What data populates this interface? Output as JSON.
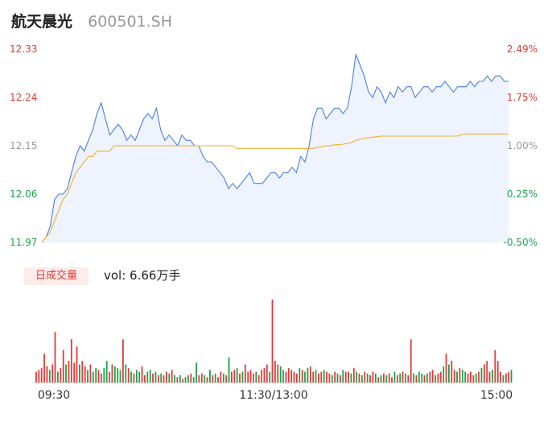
{
  "header": {
    "name": "航天晨光",
    "code": "600501.SH"
  },
  "volume_panel": {
    "badge": "日成交量",
    "vol_text": "vol: 6.66万手"
  },
  "colors": {
    "up": "#e53935",
    "down": "#1aa34a",
    "neutral": "#999999",
    "price_line": "#4a7fe3",
    "avg_line": "#f2b02c",
    "area_fill": "#eef3fd"
  },
  "chart_data": [
    {
      "type": "line",
      "x_ticks": [
        "09:30",
        "11:30/13:00",
        "15:00"
      ],
      "left_axis": [
        "12.33",
        "12.24",
        "12.15",
        "12.06",
        "11.97"
      ],
      "right_axis": [
        "2.49%",
        "1.75%",
        "1.00%",
        "0.25%",
        "-0.50%"
      ],
      "ylim": [
        11.97,
        12.33
      ],
      "series": [
        {
          "name": "price",
          "values": [
            11.97,
            11.98,
            12.0,
            12.05,
            12.06,
            12.06,
            12.07,
            12.1,
            12.13,
            12.15,
            12.14,
            12.16,
            12.18,
            12.21,
            12.23,
            12.2,
            12.17,
            12.18,
            12.19,
            12.18,
            12.16,
            12.17,
            12.16,
            12.18,
            12.2,
            12.21,
            12.2,
            12.22,
            12.18,
            12.16,
            12.17,
            12.16,
            12.15,
            12.17,
            12.16,
            12.16,
            12.15,
            12.15,
            12.13,
            12.12,
            12.12,
            12.11,
            12.1,
            12.09,
            12.07,
            12.08,
            12.07,
            12.08,
            12.09,
            12.1,
            12.08,
            12.08,
            12.08,
            12.09,
            12.1,
            12.1,
            12.09,
            12.1,
            12.1,
            12.11,
            12.1,
            12.13,
            12.12,
            12.15,
            12.2,
            12.22,
            12.22,
            12.2,
            12.21,
            12.22,
            12.22,
            12.21,
            12.22,
            12.26,
            12.32,
            12.3,
            12.28,
            12.25,
            12.24,
            12.26,
            12.25,
            12.23,
            12.25,
            12.24,
            12.26,
            12.25,
            12.26,
            12.26,
            12.24,
            12.25,
            12.26,
            12.26,
            12.25,
            12.26,
            12.26,
            12.27,
            12.26,
            12.25,
            12.26,
            12.26,
            12.26,
            12.27,
            12.26,
            12.27,
            12.27,
            12.28,
            12.27,
            12.28,
            12.28,
            12.27,
            12.27
          ]
        },
        {
          "name": "avg",
          "values": [
            11.97,
            11.98,
            11.99,
            12.01,
            12.03,
            12.05,
            12.06,
            12.08,
            12.1,
            12.11,
            12.12,
            12.13,
            12.13,
            12.14,
            12.14,
            12.14,
            12.14,
            12.15,
            12.15,
            12.15,
            12.15,
            12.15,
            12.15,
            12.15,
            12.15,
            12.15,
            12.15,
            12.15,
            12.15,
            12.15,
            12.15,
            12.15,
            12.15,
            12.15,
            12.15,
            12.15,
            12.15,
            12.15,
            12.15,
            12.15,
            12.15,
            12.15,
            12.15,
            12.15,
            12.15,
            12.15,
            12.145,
            12.145,
            12.145,
            12.145,
            12.145,
            12.145,
            12.145,
            12.145,
            12.145,
            12.145,
            12.145,
            12.145,
            12.145,
            12.145,
            12.145,
            12.145,
            12.145,
            12.145,
            12.145,
            12.147,
            12.148,
            12.15,
            12.15,
            12.152,
            12.152,
            12.153,
            12.154,
            12.156,
            12.16,
            12.162,
            12.164,
            12.165,
            12.166,
            12.167,
            12.168,
            12.168,
            12.168,
            12.168,
            12.168,
            12.168,
            12.168,
            12.168,
            12.168,
            12.168,
            12.168,
            12.168,
            12.168,
            12.168,
            12.168,
            12.168,
            12.168,
            12.168,
            12.168,
            12.171,
            12.172,
            12.172,
            12.172,
            12.172,
            12.172,
            12.172,
            12.172,
            12.172,
            12.172,
            12.172,
            12.172
          ]
        }
      ]
    },
    {
      "type": "bar",
      "series": [
        {
          "name": "volume",
          "values": [
            0.3,
            0.35,
            0.4,
            0.8,
            0.45,
            0.35,
            0.5,
            1.4,
            0.3,
            0.4,
            0.9,
            0.5,
            0.6,
            1.2,
            0.55,
            1.0,
            0.5,
            0.6,
            0.45,
            0.35,
            0.5,
            0.3,
            0.4,
            0.35,
            0.25,
            0.4,
            0.6,
            0.3,
            0.5,
            0.45,
            0.4,
            0.35,
            1.2,
            0.5,
            0.4,
            0.3,
            0.25,
            0.35,
            0.3,
            0.45,
            0.2,
            0.3,
            0.35,
            0.25,
            0.3,
            0.2,
            0.25,
            0.2,
            0.3,
            0.25,
            0.35,
            0.2,
            0.15,
            0.2,
            0.1,
            0.15,
            0.2,
            0.25,
            0.15,
            0.55,
            0.2,
            0.25,
            0.2,
            0.15,
            0.35,
            0.2,
            0.25,
            0.15,
            0.3,
            0.25,
            0.2,
            0.7,
            0.3,
            0.35,
            0.4,
            0.25,
            0.3,
            0.5,
            0.3,
            0.35,
            0.25,
            0.3,
            0.2,
            0.35,
            0.4,
            0.5,
            0.3,
            2.3,
            0.6,
            0.5,
            0.45,
            0.35,
            0.3,
            0.4,
            0.35,
            0.3,
            0.25,
            0.4,
            0.35,
            0.3,
            0.4,
            0.45,
            0.3,
            0.35,
            0.25,
            0.3,
            0.35,
            0.3,
            0.25,
            0.2,
            0.3,
            0.25,
            0.2,
            0.35,
            0.3,
            0.3,
            0.25,
            0.4,
            0.3,
            0.25,
            0.2,
            0.3,
            0.25,
            0.2,
            0.3,
            0.25,
            0.15,
            0.2,
            0.25,
            0.2,
            0.25,
            0.15,
            0.3,
            0.2,
            0.25,
            0.3,
            0.25,
            0.2,
            1.2,
            0.25,
            0.2,
            0.3,
            0.25,
            0.2,
            0.25,
            0.3,
            0.35,
            0.2,
            0.25,
            0.3,
            0.45,
            0.8,
            0.5,
            0.6,
            0.35,
            0.3,
            0.4,
            0.35,
            0.3,
            0.25,
            0.3,
            0.2,
            0.25,
            0.3,
            0.4,
            0.5,
            0.6,
            0.3,
            0.35,
            0.9,
            0.6,
            0.3,
            0.2,
            0.25,
            0.3,
            0.35
          ],
          "up": [
            1,
            1,
            1,
            1,
            1,
            0,
            1,
            1,
            0,
            1,
            1,
            0,
            1,
            1,
            1,
            1,
            0,
            1,
            1,
            0,
            1,
            0,
            0,
            1,
            1,
            0,
            0,
            1,
            1,
            0,
            0,
            0,
            1,
            0,
            1,
            0,
            1,
            0,
            0,
            1,
            1,
            0,
            0,
            1,
            0,
            1,
            0,
            1,
            1,
            0,
            1,
            0,
            1,
            0,
            1,
            0,
            0,
            1,
            0,
            0,
            1,
            1,
            0,
            1,
            0,
            1,
            0,
            1,
            1,
            0,
            1,
            0,
            1,
            1,
            0,
            1,
            0,
            1,
            1,
            1,
            1,
            0,
            1,
            1,
            1,
            1,
            0,
            1,
            1,
            1,
            0,
            0,
            1,
            1,
            1,
            1,
            1,
            0,
            1,
            0,
            0,
            1,
            1,
            0,
            1,
            1,
            0,
            1,
            1,
            0,
            1,
            0,
            1,
            0,
            1,
            1,
            0,
            1,
            0,
            1,
            0,
            1,
            0,
            1,
            1,
            0,
            1,
            0,
            1,
            0,
            1,
            1,
            0,
            1,
            0,
            1,
            0,
            1,
            1,
            0,
            1,
            0,
            0,
            1,
            0,
            1,
            1,
            0,
            1,
            1,
            0,
            1,
            0,
            1,
            1,
            0,
            1,
            0,
            0,
            1,
            1,
            1,
            0,
            1,
            0,
            1,
            1,
            1,
            0,
            1,
            1,
            1,
            0,
            1,
            1,
            0,
            1,
            1,
            1,
            1
          ]
        }
      ]
    }
  ]
}
